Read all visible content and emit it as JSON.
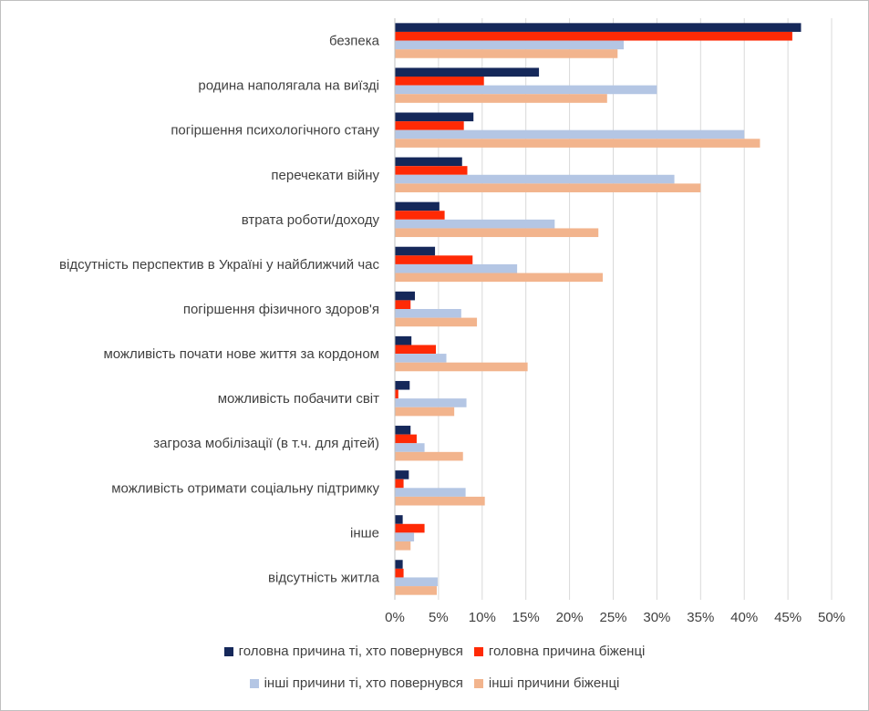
{
  "chart_data": {
    "type": "bar",
    "orientation": "horizontal",
    "title": "",
    "xlabel": "",
    "ylabel": "",
    "xlim": [
      0,
      50
    ],
    "grid": true,
    "legend_position": "bottom",
    "x_ticks": [
      "0%",
      "5%",
      "10%",
      "15%",
      "20%",
      "25%",
      "30%",
      "35%",
      "40%",
      "45%",
      "50%"
    ],
    "categories": [
      "безпека",
      "родина наполягала на виїзді",
      "погіршення психологічного стану",
      "перечекати війну",
      "втрата роботи/доходу",
      "відсутність перспектив в Україні у найближчий час",
      "погіршення фізичного здоров'я",
      "можливість почати нове життя за кордоном",
      "можливість побачити світ",
      "загроза мобілізації (в т.ч. для дітей)",
      "можливість отримати соціальну підтримку",
      "інше",
      "відсутність житла"
    ],
    "series": [
      {
        "name": "головна причина ті, хто повернувся",
        "color": "#15285a",
        "values": [
          46.5,
          16.5,
          9.0,
          7.7,
          5.1,
          4.6,
          2.3,
          1.9,
          1.7,
          1.8,
          1.6,
          0.9,
          0.9
        ]
      },
      {
        "name": "головна причина біженці",
        "color": "#ff2a05",
        "values": [
          45.5,
          10.2,
          7.9,
          8.3,
          5.7,
          8.9,
          1.8,
          4.7,
          0.4,
          2.5,
          1.0,
          3.4,
          1.0
        ]
      },
      {
        "name": "інші причини ті, хто повернувся",
        "color": "#b4c6e4",
        "values": [
          26.2,
          30.0,
          40.0,
          32.0,
          18.3,
          14.0,
          7.6,
          5.9,
          8.2,
          3.4,
          8.1,
          2.2,
          4.9
        ]
      },
      {
        "name": "інші причини біженці",
        "color": "#f2b48d",
        "values": [
          25.5,
          24.3,
          41.8,
          35.0,
          23.3,
          23.8,
          9.4,
          15.2,
          6.8,
          7.8,
          10.3,
          1.8,
          4.8
        ]
      }
    ]
  }
}
